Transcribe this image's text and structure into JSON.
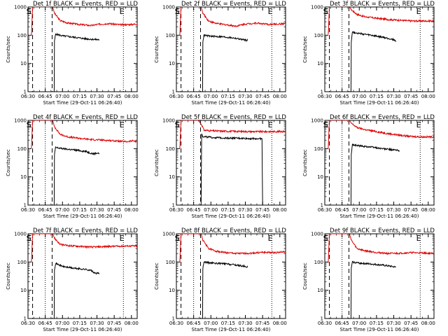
{
  "chart_data": {
    "type": "line",
    "y_scale": "log",
    "ylim": [
      1,
      1000
    ],
    "y_ticks": [
      {
        "v": 1,
        "label": "1"
      },
      {
        "v": 10,
        "label": "10"
      },
      {
        "v": 100,
        "label": "100"
      },
      {
        "v": 1000,
        "label": "1000"
      }
    ],
    "xlim_minutes": [
      0,
      95
    ],
    "x_ticks": [
      {
        "v": 0,
        "label": "06:30"
      },
      {
        "v": 15,
        "label": "06:45"
      },
      {
        "v": 30,
        "label": "07:00"
      },
      {
        "v": 45,
        "label": "07:15"
      },
      {
        "v": 60,
        "label": "07:30"
      },
      {
        "v": 75,
        "label": "07:45"
      },
      {
        "v": 90,
        "label": "08:00"
      }
    ],
    "xlabel": "Start Time (29-Oct-11 06:26:40)",
    "ylabel": "Counts/sec",
    "colors": {
      "events": "#000000",
      "lld": "#dd0000"
    },
    "panels": [
      {
        "title": "Det 1f BLACK = Events, RED = LLD",
        "markers": {
          "S": 4,
          "E": 15,
          "F": 21,
          "E2": 83
        },
        "events": [
          [
            22.8,
            1
          ],
          [
            23,
            60
          ],
          [
            24,
            110
          ],
          [
            30,
            95
          ],
          [
            40,
            85
          ],
          [
            50,
            75
          ],
          [
            60,
            70
          ],
          [
            62,
            70
          ]
        ],
        "lld": [
          [
            3,
            100
          ],
          [
            4,
            1000
          ],
          [
            21.5,
            1000
          ],
          [
            23,
            600
          ],
          [
            28,
            330
          ],
          [
            35,
            270
          ],
          [
            45,
            240
          ],
          [
            55,
            220
          ],
          [
            60,
            240
          ],
          [
            70,
            260
          ],
          [
            80,
            235
          ],
          [
            90,
            240
          ],
          [
            95,
            250
          ]
        ]
      },
      {
        "title": "Det 2f BLACK = Events, RED = LLD",
        "markers": {
          "S": 4,
          "E": 15,
          "F": 21,
          "E2": 83
        },
        "events": [
          [
            22.8,
            1
          ],
          [
            23,
            60
          ],
          [
            24,
            100
          ],
          [
            30,
            92
          ],
          [
            40,
            88
          ],
          [
            50,
            80
          ],
          [
            58,
            70
          ],
          [
            62,
            66
          ]
        ],
        "lld": [
          [
            3,
            100
          ],
          [
            4,
            1000
          ],
          [
            21.5,
            1000
          ],
          [
            23,
            600
          ],
          [
            28,
            320
          ],
          [
            35,
            260
          ],
          [
            45,
            230
          ],
          [
            52,
            210
          ],
          [
            60,
            250
          ],
          [
            70,
            270
          ],
          [
            80,
            240
          ],
          [
            90,
            250
          ],
          [
            95,
            260
          ]
        ]
      },
      {
        "title": "Det 3f BLACK = Events, RED = LLD",
        "markers": {
          "S": 4,
          "E": 15,
          "F": 21,
          "E2": 83
        },
        "events": [
          [
            22.8,
            1
          ],
          [
            23,
            60
          ],
          [
            24,
            130
          ],
          [
            30,
            115
          ],
          [
            40,
            100
          ],
          [
            50,
            85
          ],
          [
            60,
            70
          ],
          [
            62,
            60
          ]
        ],
        "lld": [
          [
            3,
            100
          ],
          [
            4,
            1000
          ],
          [
            21.5,
            1000
          ],
          [
            23,
            800
          ],
          [
            28,
            550
          ],
          [
            35,
            450
          ],
          [
            45,
            400
          ],
          [
            55,
            360
          ],
          [
            65,
            340
          ],
          [
            75,
            320
          ],
          [
            85,
            320
          ],
          [
            95,
            320
          ]
        ]
      },
      {
        "title": "Det 4f BLACK = Events, RED = LLD",
        "markers": {
          "S": 4,
          "E": 15,
          "F": 21,
          "E2": 83
        },
        "events": [
          [
            22.8,
            1
          ],
          [
            23,
            60
          ],
          [
            24,
            110
          ],
          [
            30,
            100
          ],
          [
            40,
            90
          ],
          [
            50,
            80
          ],
          [
            57,
            65
          ],
          [
            60,
            70
          ],
          [
            62,
            68
          ]
        ],
        "lld": [
          [
            3,
            100
          ],
          [
            4,
            1000
          ],
          [
            21.5,
            1000
          ],
          [
            23,
            600
          ],
          [
            28,
            320
          ],
          [
            35,
            260
          ],
          [
            45,
            230
          ],
          [
            55,
            210
          ],
          [
            65,
            200
          ],
          [
            75,
            190
          ],
          [
            85,
            175
          ],
          [
            92,
            190
          ],
          [
            95,
            170
          ]
        ]
      },
      {
        "title": "Det 5f BLACK = Events, RED = LLD",
        "markers": {
          "S": 4,
          "E": 15,
          "F": 21,
          "E2": 83
        },
        "events": [
          [
            21.5,
            1
          ],
          [
            22,
            330
          ],
          [
            23,
            270
          ],
          [
            30,
            250
          ],
          [
            40,
            240
          ],
          [
            50,
            235
          ],
          [
            60,
            230
          ],
          [
            70,
            225
          ],
          [
            74.5,
            225
          ],
          [
            75,
            1
          ]
        ],
        "lld": [
          [
            3,
            100
          ],
          [
            4,
            1000
          ],
          [
            19,
            1000
          ],
          [
            22,
            700
          ],
          [
            24,
            450
          ],
          [
            30,
            430
          ],
          [
            40,
            415
          ],
          [
            50,
            410
          ],
          [
            60,
            405
          ],
          [
            70,
            400
          ],
          [
            80,
            400
          ],
          [
            90,
            405
          ],
          [
            95,
            405
          ]
        ]
      },
      {
        "title": "Det 6f BLACK = Events, RED = LLD",
        "markers": {
          "S": 4,
          "E": 15,
          "F": 21,
          "E2": 83
        },
        "events": [
          [
            22.8,
            1
          ],
          [
            23,
            60
          ],
          [
            24,
            140
          ],
          [
            30,
            125
          ],
          [
            40,
            115
          ],
          [
            50,
            100
          ],
          [
            60,
            90
          ],
          [
            65,
            85
          ]
        ],
        "lld": [
          [
            3,
            100
          ],
          [
            4,
            1000
          ],
          [
            21.5,
            1000
          ],
          [
            23,
            800
          ],
          [
            28,
            560
          ],
          [
            35,
            470
          ],
          [
            45,
            400
          ],
          [
            55,
            340
          ],
          [
            65,
            300
          ],
          [
            75,
            270
          ],
          [
            85,
            260
          ],
          [
            95,
            260
          ]
        ]
      },
      {
        "title": "Det 7f BLACK = Events, RED = LLD",
        "markers": {
          "S": 4,
          "E": 15,
          "F": 21,
          "E2": 83
        },
        "events": [
          [
            22.8,
            1
          ],
          [
            23,
            55
          ],
          [
            24,
            90
          ],
          [
            30,
            70
          ],
          [
            40,
            60
          ],
          [
            50,
            55
          ],
          [
            55,
            50
          ],
          [
            58,
            40
          ],
          [
            62,
            40
          ]
        ],
        "lld": [
          [
            3,
            100
          ],
          [
            4,
            1000
          ],
          [
            21.5,
            1000
          ],
          [
            23,
            700
          ],
          [
            28,
            420
          ],
          [
            35,
            380
          ],
          [
            45,
            360
          ],
          [
            55,
            340
          ],
          [
            65,
            350
          ],
          [
            75,
            360
          ],
          [
            85,
            370
          ],
          [
            95,
            370
          ]
        ]
      },
      {
        "title": "Det 8f BLACK = Events, RED = LLD",
        "markers": {
          "S": 4,
          "E": 15,
          "F": 21,
          "E2": 83
        },
        "events": [
          [
            22.8,
            1
          ],
          [
            23,
            60
          ],
          [
            24,
            100
          ],
          [
            30,
            92
          ],
          [
            40,
            88
          ],
          [
            50,
            80
          ],
          [
            60,
            70
          ],
          [
            62,
            66
          ]
        ],
        "lld": [
          [
            3,
            100
          ],
          [
            4,
            1000
          ],
          [
            21.5,
            1000
          ],
          [
            23,
            600
          ],
          [
            28,
            300
          ],
          [
            35,
            240
          ],
          [
            45,
            210
          ],
          [
            55,
            200
          ],
          [
            65,
            205
          ],
          [
            75,
            220
          ],
          [
            85,
            215
          ],
          [
            95,
            230
          ]
        ]
      },
      {
        "title": "Det 9f BLACK = Events, RED = LLD",
        "markers": {
          "S": 4,
          "E": 15,
          "F": 21,
          "E2": 83
        },
        "events": [
          [
            22.8,
            1
          ],
          [
            23,
            60
          ],
          [
            24,
            100
          ],
          [
            30,
            92
          ],
          [
            40,
            85
          ],
          [
            50,
            78
          ],
          [
            58,
            70
          ],
          [
            62,
            66
          ]
        ],
        "lld": [
          [
            3,
            100
          ],
          [
            4,
            1000
          ],
          [
            21.5,
            1000
          ],
          [
            23,
            600
          ],
          [
            28,
            300
          ],
          [
            35,
            250
          ],
          [
            45,
            220
          ],
          [
            55,
            200
          ],
          [
            65,
            205
          ],
          [
            75,
            215
          ],
          [
            85,
            210
          ],
          [
            95,
            200
          ]
        ]
      }
    ]
  }
}
